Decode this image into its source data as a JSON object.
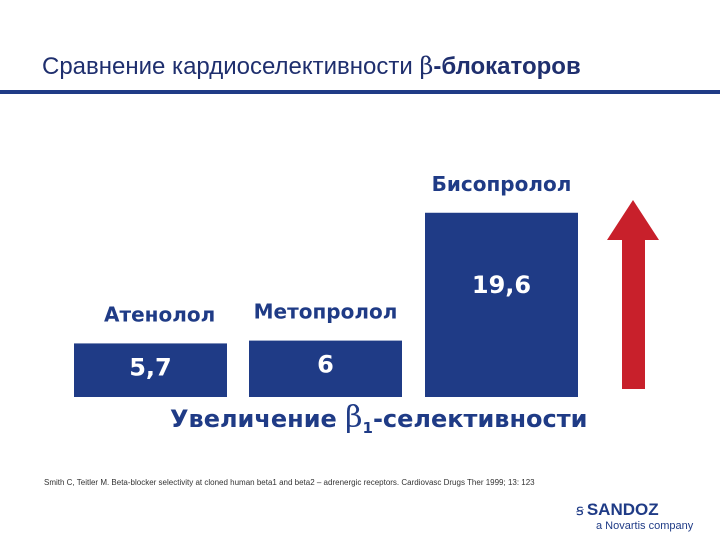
{
  "slide": {
    "title_prefix": "Сравнение кардиоселективности ",
    "title_greek": "β",
    "title_suffix": "-блокаторов",
    "source": "Smith C, Teitler M. Beta-blocker selectivity at cloned human beta1 and beta2 – adrenergic receptors. Cardiovasc Drugs Ther 1999; 13: 123",
    "logo_mark": "ꞩ",
    "logo_text": "SANDOZ",
    "logo_sub": "a Novartis company"
  },
  "colors": {
    "bar": "#1f3b86",
    "arrow": "#c8202b",
    "title": "#1f2f6e"
  },
  "chart_data": {
    "type": "bar",
    "categories": [
      "Атенолол",
      "Метопролол",
      "Бисопролол"
    ],
    "values": [
      5.7,
      6,
      19.6
    ],
    "value_labels": [
      "5,7",
      "6",
      "19,6"
    ],
    "xlabel_prefix": "Увеличение ",
    "xlabel_greek": "β",
    "xlabel_sub": "1",
    "xlabel_suffix": "-селективности",
    "arrow": "up"
  }
}
